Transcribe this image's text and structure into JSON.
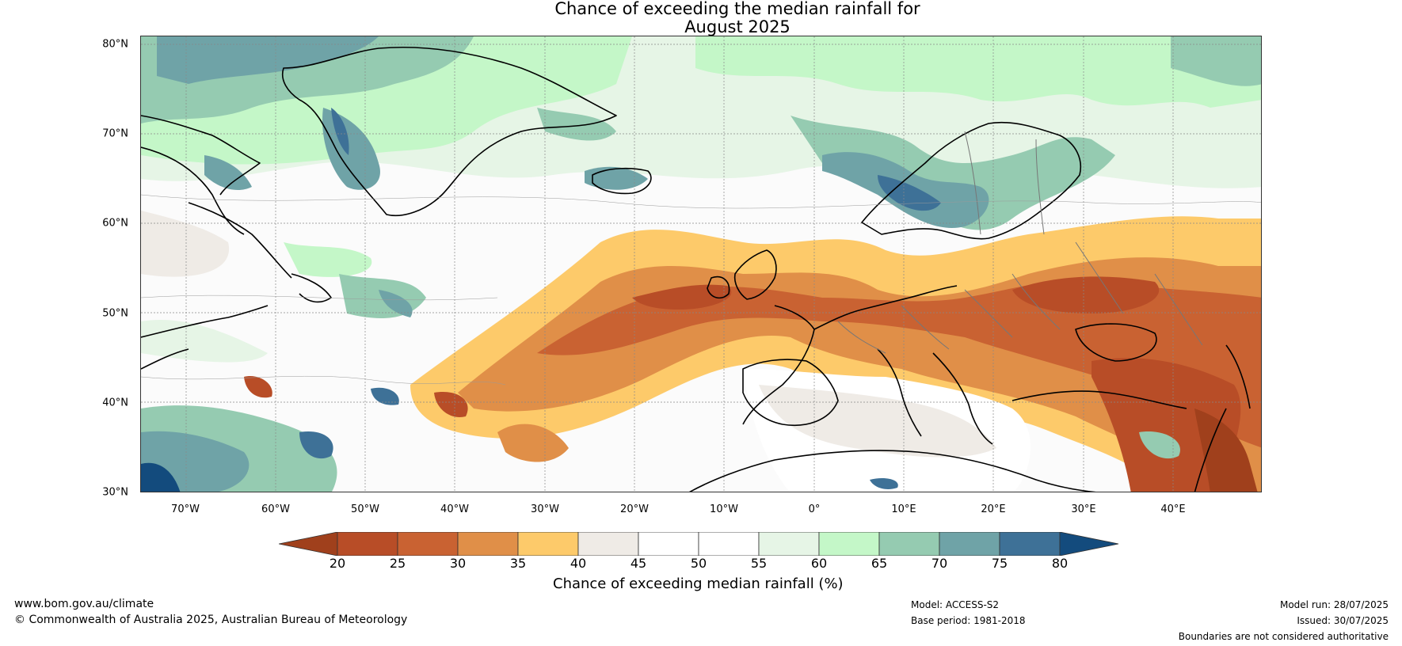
{
  "title": {
    "line1": "Chance of exceeding the median rainfall for",
    "line2": "August 2025"
  },
  "map": {
    "lat_labels": [
      "80°N",
      "70°N",
      "60°N",
      "50°N",
      "40°N",
      "30°N"
    ],
    "lon_labels": [
      "70°W",
      "60°W",
      "50°W",
      "40°W",
      "30°W",
      "20°W",
      "10°W",
      "0°",
      "10°E",
      "20°E",
      "30°E",
      "40°E"
    ],
    "lat_range": [
      30,
      81
    ],
    "lon_range": [
      -75,
      50
    ]
  },
  "colorbar": {
    "ticks": [
      "20",
      "25",
      "30",
      "35",
      "40",
      "45",
      "50",
      "55",
      "60",
      "65",
      "70",
      "75",
      "80"
    ],
    "colors": [
      "#a0401c",
      "#b84d27",
      "#c96232",
      "#e08f48",
      "#fdca6a",
      "#efebe6",
      "#ffffff",
      "#ffffff",
      "#e6f5e6",
      "#c4f7c8",
      "#95cbb1",
      "#6fa3a7",
      "#3e7197",
      "#134b7d"
    ],
    "label": "Chance of exceeding median rainfall (%)"
  },
  "footer": {
    "website": "www.bom.gov.au/climate",
    "copyright": "© Commonwealth of Australia 2025, Australian Bureau of Meteorology",
    "model": "Model: ACCESS-S2",
    "base_period": "Base period: 1981-2018",
    "model_run": "Model run: 28/07/2025",
    "issued": "Issued: 30/07/2025",
    "disclaimer": "Boundaries are not considered authoritative"
  }
}
